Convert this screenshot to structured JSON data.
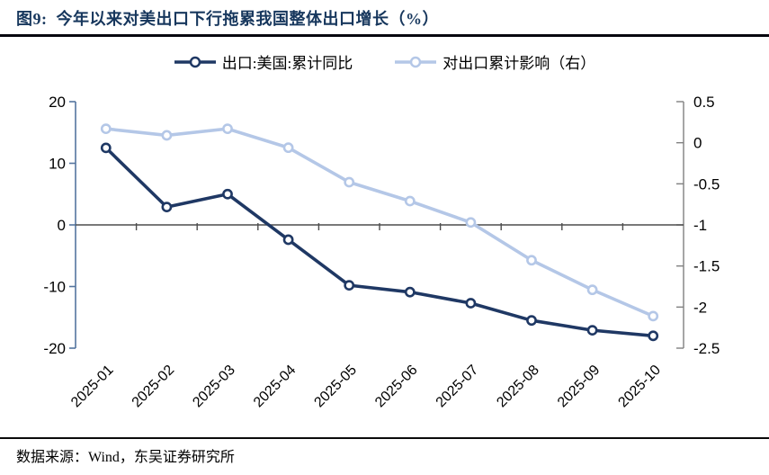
{
  "title": {
    "prefix": "图9:",
    "text": "今年以来对美出口下行拖累我国整体出口增长（%）"
  },
  "source": {
    "text": "数据来源：Wind，东吴证券研究所"
  },
  "chart_data": {
    "type": "line",
    "title": "今年以来对美出口下行拖累我国整体出口增长（%）",
    "categories": [
      "2025-01",
      "2025-02",
      "2025-03",
      "2025-04",
      "2025-05",
      "2025-06",
      "2025-07",
      "2025-08",
      "2025-09",
      "2025-10"
    ],
    "series": [
      {
        "name": "出口:美国:累计同比",
        "axis": "left",
        "color": "#1F3864",
        "values": [
          12.5,
          2.9,
          5.0,
          -2.4,
          -9.8,
          -10.9,
          -12.7,
          -15.5,
          -17.1,
          -18.0
        ]
      },
      {
        "name": "对出口累计影响（右）",
        "axis": "right",
        "color": "#B4C7E7",
        "values": [
          0.17,
          0.09,
          0.17,
          -0.06,
          -0.48,
          -0.71,
          -0.97,
          -1.43,
          -1.79,
          -2.11
        ]
      }
    ],
    "left_axis": {
      "min": -20,
      "max": 20,
      "ticks": [
        20,
        10,
        0,
        -10,
        -20
      ]
    },
    "right_axis": {
      "min": -2.5,
      "max": 0.5,
      "ticks": [
        0.5,
        0,
        -0.5,
        -1,
        -1.5,
        -2,
        -2.5
      ]
    },
    "legend_position": "top",
    "grid": false
  },
  "colors": {
    "title": "#17375D",
    "left_axis_line": "#54749E",
    "right_axis_line": "#808080",
    "zero_line": "#4d4d4d",
    "tick_label": "#000000"
  }
}
